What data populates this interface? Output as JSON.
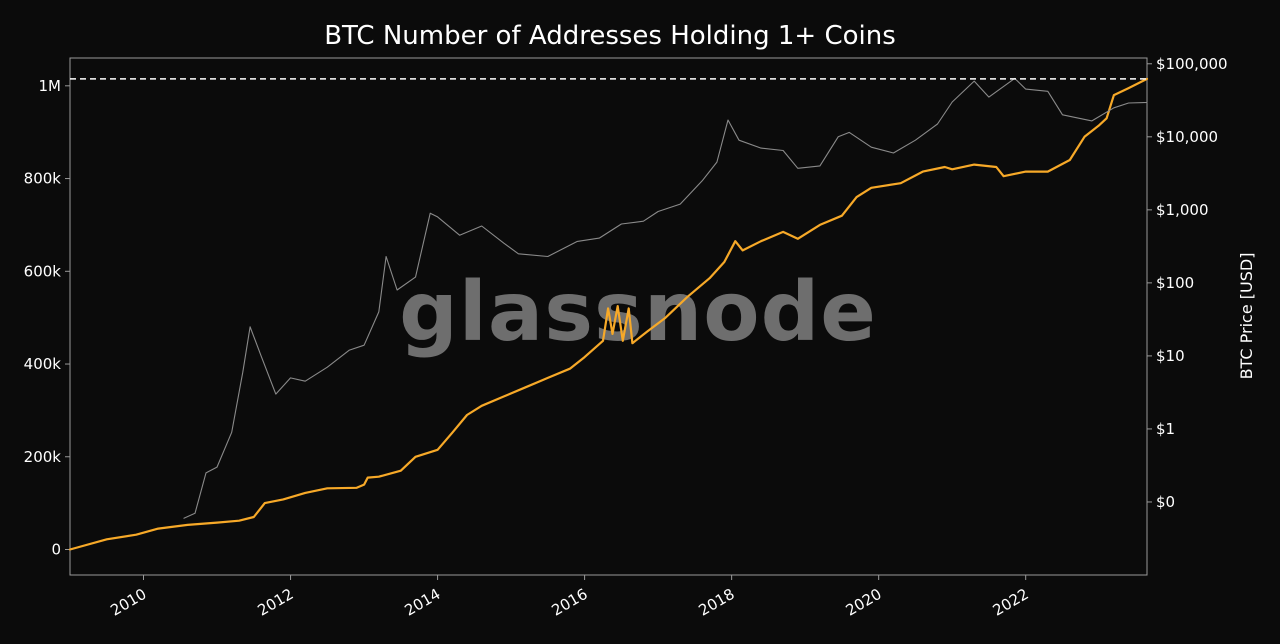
{
  "chart_data": {
    "type": "line",
    "title": "BTC Number of Addresses Holding 1+ Coins",
    "watermark": "glassnode",
    "left_axis": {
      "label": "",
      "ticks": [
        {
          "value": 0,
          "label": "0"
        },
        {
          "value": 200000,
          "label": "200k"
        },
        {
          "value": 400000,
          "label": "400k"
        },
        {
          "value": 600000,
          "label": "600k"
        },
        {
          "value": 800000,
          "label": "800k"
        },
        {
          "value": 1000000,
          "label": "1M"
        }
      ],
      "range": [
        -55000,
        1060000
      ]
    },
    "right_axis": {
      "label": "BTC Price [USD]",
      "scale": "log",
      "ticks": [
        {
          "value": 0.1,
          "label": "$0"
        },
        {
          "value": 1,
          "label": "$1"
        },
        {
          "value": 10,
          "label": "$10"
        },
        {
          "value": 100,
          "label": "$100"
        },
        {
          "value": 1000,
          "label": "$1,000"
        },
        {
          "value": 10000,
          "label": "$10,000"
        },
        {
          "value": 100000,
          "label": "$100,000"
        }
      ],
      "range": [
        0.01,
        120000
      ]
    },
    "x_axis": {
      "ticks": [
        {
          "value": 2010,
          "label": "2010"
        },
        {
          "value": 2012,
          "label": "2012"
        },
        {
          "value": 2014,
          "label": "2014"
        },
        {
          "value": 2016,
          "label": "2016"
        },
        {
          "value": 2018,
          "label": "2018"
        },
        {
          "value": 2020,
          "label": "2020"
        },
        {
          "value": 2022,
          "label": "2022"
        }
      ],
      "range": [
        2009.0,
        2023.65
      ]
    },
    "reference_line": {
      "value": 1015000,
      "style": "dashed",
      "color": "#ffffff"
    },
    "grid": false,
    "series": [
      {
        "axis": "left",
        "color": "#f7a928",
        "points": [
          [
            2009.0,
            0
          ],
          [
            2009.5,
            22000
          ],
          [
            2009.9,
            32000
          ],
          [
            2010.2,
            45000
          ],
          [
            2010.6,
            53000
          ],
          [
            2011.0,
            58000
          ],
          [
            2011.3,
            62000
          ],
          [
            2011.5,
            70000
          ],
          [
            2011.65,
            100000
          ],
          [
            2011.9,
            108000
          ],
          [
            2012.2,
            122000
          ],
          [
            2012.5,
            132000
          ],
          [
            2012.9,
            133000
          ],
          [
            2013.0,
            140000
          ],
          [
            2013.05,
            155000
          ],
          [
            2013.2,
            157000
          ],
          [
            2013.5,
            170000
          ],
          [
            2013.7,
            200000
          ],
          [
            2014.0,
            215000
          ],
          [
            2014.2,
            252000
          ],
          [
            2014.4,
            290000
          ],
          [
            2014.6,
            310000
          ],
          [
            2014.9,
            330000
          ],
          [
            2015.2,
            350000
          ],
          [
            2015.5,
            370000
          ],
          [
            2015.8,
            390000
          ],
          [
            2016.0,
            415000
          ],
          [
            2016.25,
            450000
          ],
          [
            2016.32,
            520000
          ],
          [
            2016.38,
            465000
          ],
          [
            2016.45,
            525000
          ],
          [
            2016.52,
            450000
          ],
          [
            2016.6,
            520000
          ],
          [
            2016.65,
            445000
          ],
          [
            2016.85,
            470000
          ],
          [
            2017.1,
            500000
          ],
          [
            2017.4,
            545000
          ],
          [
            2017.7,
            585000
          ],
          [
            2017.9,
            620000
          ],
          [
            2018.05,
            665000
          ],
          [
            2018.15,
            645000
          ],
          [
            2018.4,
            665000
          ],
          [
            2018.7,
            685000
          ],
          [
            2018.9,
            670000
          ],
          [
            2019.2,
            700000
          ],
          [
            2019.5,
            720000
          ],
          [
            2019.7,
            760000
          ],
          [
            2019.9,
            780000
          ],
          [
            2020.3,
            790000
          ],
          [
            2020.6,
            815000
          ],
          [
            2020.9,
            825000
          ],
          [
            2021.0,
            820000
          ],
          [
            2021.3,
            830000
          ],
          [
            2021.6,
            825000
          ],
          [
            2021.7,
            805000
          ],
          [
            2022.0,
            815000
          ],
          [
            2022.3,
            815000
          ],
          [
            2022.6,
            840000
          ],
          [
            2022.8,
            890000
          ],
          [
            2023.0,
            915000
          ],
          [
            2023.1,
            930000
          ],
          [
            2023.2,
            980000
          ],
          [
            2023.4,
            995000
          ],
          [
            2023.65,
            1015000
          ]
        ]
      },
      {
        "axis": "right",
        "color": "#8a8a8a",
        "points": [
          [
            2010.55,
            0.06
          ],
          [
            2010.7,
            0.07
          ],
          [
            2010.85,
            0.25
          ],
          [
            2011.0,
            0.3
          ],
          [
            2011.2,
            0.9
          ],
          [
            2011.35,
            6
          ],
          [
            2011.45,
            25
          ],
          [
            2011.6,
            10
          ],
          [
            2011.8,
            3
          ],
          [
            2012.0,
            5
          ],
          [
            2012.2,
            4.5
          ],
          [
            2012.5,
            7
          ],
          [
            2012.8,
            12
          ],
          [
            2013.0,
            14
          ],
          [
            2013.2,
            40
          ],
          [
            2013.3,
            230
          ],
          [
            2013.45,
            80
          ],
          [
            2013.7,
            120
          ],
          [
            2013.9,
            900
          ],
          [
            2014.0,
            800
          ],
          [
            2014.3,
            450
          ],
          [
            2014.6,
            600
          ],
          [
            2014.9,
            350
          ],
          [
            2015.1,
            250
          ],
          [
            2015.5,
            230
          ],
          [
            2015.9,
            370
          ],
          [
            2016.2,
            410
          ],
          [
            2016.5,
            640
          ],
          [
            2016.8,
            700
          ],
          [
            2017.0,
            950
          ],
          [
            2017.3,
            1200
          ],
          [
            2017.6,
            2500
          ],
          [
            2017.8,
            4500
          ],
          [
            2017.95,
            17000
          ],
          [
            2018.1,
            9000
          ],
          [
            2018.4,
            7000
          ],
          [
            2018.7,
            6500
          ],
          [
            2018.9,
            3700
          ],
          [
            2019.2,
            4000
          ],
          [
            2019.45,
            10000
          ],
          [
            2019.6,
            11500
          ],
          [
            2019.9,
            7200
          ],
          [
            2020.2,
            6000
          ],
          [
            2020.5,
            9000
          ],
          [
            2020.8,
            15000
          ],
          [
            2021.0,
            30000
          ],
          [
            2021.3,
            58000
          ],
          [
            2021.5,
            35000
          ],
          [
            2021.85,
            63000
          ],
          [
            2022.0,
            45000
          ],
          [
            2022.3,
            42000
          ],
          [
            2022.5,
            20000
          ],
          [
            2022.9,
            16500
          ],
          [
            2023.2,
            25000
          ],
          [
            2023.4,
            29000
          ],
          [
            2023.65,
            29500
          ]
        ]
      }
    ]
  }
}
